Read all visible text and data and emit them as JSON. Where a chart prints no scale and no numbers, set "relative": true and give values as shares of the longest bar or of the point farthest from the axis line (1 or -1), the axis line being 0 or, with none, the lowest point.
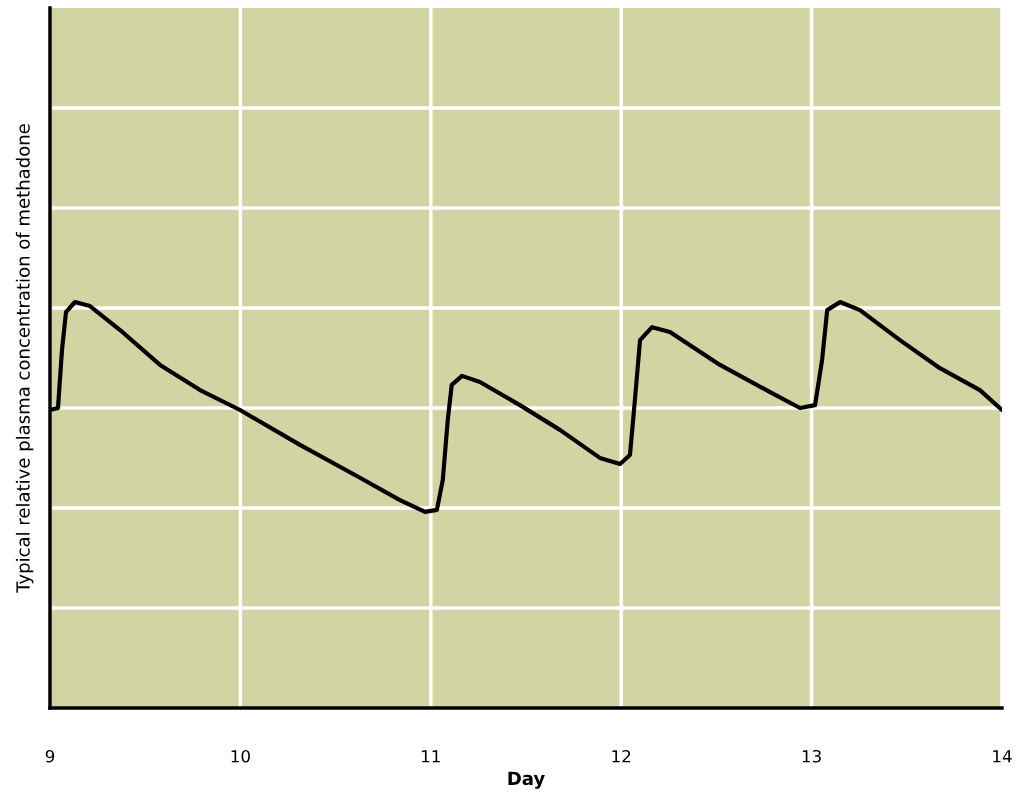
{
  "chart_data": {
    "type": "line",
    "xlabel": "Day",
    "ylabel": "Typical relative plasma concentration of methadone",
    "x": [
      9.0,
      9.042,
      9.063,
      9.084,
      9.131,
      9.21,
      9.368,
      9.578,
      9.788,
      9.998,
      10.313,
      10.628,
      10.838,
      10.97,
      11.032,
      11.063,
      11.089,
      11.11,
      11.164,
      11.258,
      11.468,
      11.678,
      11.888,
      11.994,
      12.046,
      12.072,
      12.099,
      12.162,
      12.256,
      12.519,
      12.782,
      12.939,
      13.018,
      13.055,
      13.082,
      13.15,
      13.254,
      13.464,
      13.674,
      13.884,
      14.0
    ],
    "series": [
      {
        "color": "#000000",
        "values": [
          0.734,
          0.739,
          0.882,
          0.975,
          1.0,
          0.99,
          0.931,
          0.845,
          0.783,
          0.734,
          0.648,
          0.567,
          0.512,
          0.483,
          0.488,
          0.562,
          0.709,
          0.796,
          0.818,
          0.803,
          0.746,
          0.685,
          0.616,
          0.601,
          0.623,
          0.759,
          0.906,
          0.938,
          0.926,
          0.845,
          0.778,
          0.739,
          0.746,
          0.857,
          0.98,
          1.0,
          0.98,
          0.906,
          0.837,
          0.783,
          0.734
        ]
      }
    ],
    "relative": true,
    "xlim": [
      9,
      14
    ],
    "xticks": [
      9,
      10,
      11,
      12,
      13,
      14
    ],
    "grid": true,
    "line_style": "solid",
    "tick_labels": "x"
  }
}
